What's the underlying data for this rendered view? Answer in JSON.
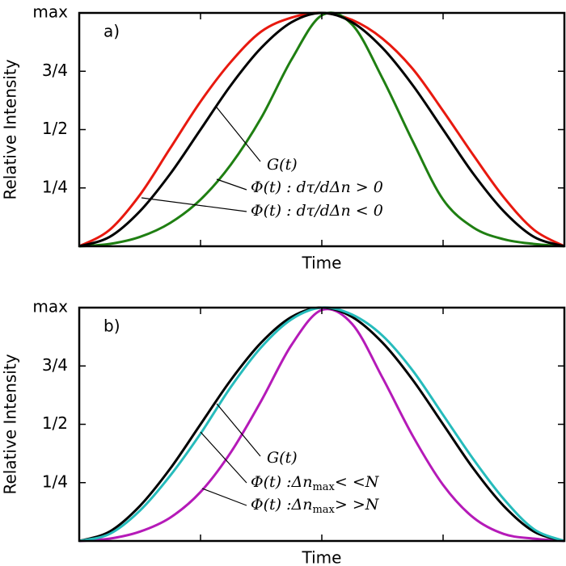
{
  "chart_data": [
    {
      "type": "line",
      "label": "a)",
      "xlabel": "Time",
      "ylabel": "Relative Intensity",
      "x": [
        0,
        0.25,
        0.5,
        0.75,
        1,
        1.25,
        1.5,
        1.75,
        2,
        2.25,
        2.5,
        2.75,
        3,
        3.25,
        3.5,
        3.75,
        4
      ],
      "xlim": [
        0,
        4
      ],
      "xticks": [
        1,
        2,
        3
      ],
      "xtick_labels": false,
      "ylim": [
        0,
        1
      ],
      "yticks": [
        {
          "value": 0.25,
          "label": "1/4"
        },
        {
          "value": 0.5,
          "label": "1/2"
        },
        {
          "value": 0.75,
          "label": "3/4"
        },
        {
          "value": 1,
          "label": "max"
        }
      ],
      "series": [
        {
          "color": "#e8190f",
          "values": [
            0,
            0.07,
            0.22,
            0.42,
            0.62,
            0.79,
            0.92,
            0.98,
            1,
            0.97,
            0.89,
            0.76,
            0.58,
            0.39,
            0.21,
            0.07,
            0
          ]
        },
        {
          "color": "#1f7f12",
          "values": [
            0,
            0.01,
            0.04,
            0.1,
            0.2,
            0.35,
            0.55,
            0.8,
            0.99,
            0.95,
            0.72,
            0.45,
            0.2,
            0.08,
            0.03,
            0.01,
            0
          ]
        },
        {
          "color": "#000000",
          "values": [
            0,
            0.04,
            0.15,
            0.31,
            0.5,
            0.69,
            0.85,
            0.96,
            1,
            0.96,
            0.85,
            0.69,
            0.5,
            0.31,
            0.15,
            0.04,
            0
          ]
        }
      ],
      "annotations": [
        {
          "text": "G(t)"
        },
        {
          "text": "Φ(t) : dτ/dΔn > 0"
        },
        {
          "text": "Φ(t) : dτ/dΔn < 0"
        }
      ]
    },
    {
      "type": "line",
      "label": "b)",
      "xlabel": "Time",
      "ylabel": "Relative Intensity",
      "x": [
        0,
        0.25,
        0.5,
        0.75,
        1,
        1.25,
        1.5,
        1.75,
        2,
        2.25,
        2.5,
        2.75,
        3,
        3.25,
        3.5,
        3.75,
        4
      ],
      "xlim": [
        0,
        4
      ],
      "xticks": [
        1,
        2,
        3
      ],
      "xtick_labels": false,
      "ylim": [
        0,
        1
      ],
      "yticks": [
        {
          "value": 0.25,
          "label": "1/4"
        },
        {
          "value": 0.5,
          "label": "1/2"
        },
        {
          "value": 0.75,
          "label": "3/4"
        },
        {
          "value": 1,
          "label": "max"
        }
      ],
      "series": [
        {
          "color": "#b51ab8",
          "values": [
            0,
            0.01,
            0.04,
            0.1,
            0.21,
            0.38,
            0.6,
            0.84,
            0.99,
            0.93,
            0.7,
            0.45,
            0.24,
            0.1,
            0.03,
            0.01,
            0
          ]
        },
        {
          "color": "#000000",
          "values": [
            0,
            0.04,
            0.15,
            0.31,
            0.5,
            0.69,
            0.85,
            0.96,
            1,
            0.96,
            0.85,
            0.69,
            0.5,
            0.31,
            0.15,
            0.04,
            0
          ]
        },
        {
          "color": "#26bcbc",
          "values": [
            0,
            0.03,
            0.13,
            0.28,
            0.46,
            0.66,
            0.83,
            0.95,
            1,
            0.97,
            0.88,
            0.73,
            0.54,
            0.35,
            0.18,
            0.05,
            0
          ]
        }
      ],
      "annotations": [
        {
          "text": "G(t)"
        },
        {
          "text": "Φ(t) :Δn",
          "subscript": "max",
          "suffix": "< <N"
        },
        {
          "text": "Φ(t) :Δn",
          "subscript": "max",
          "suffix": "> >N"
        }
      ]
    }
  ]
}
